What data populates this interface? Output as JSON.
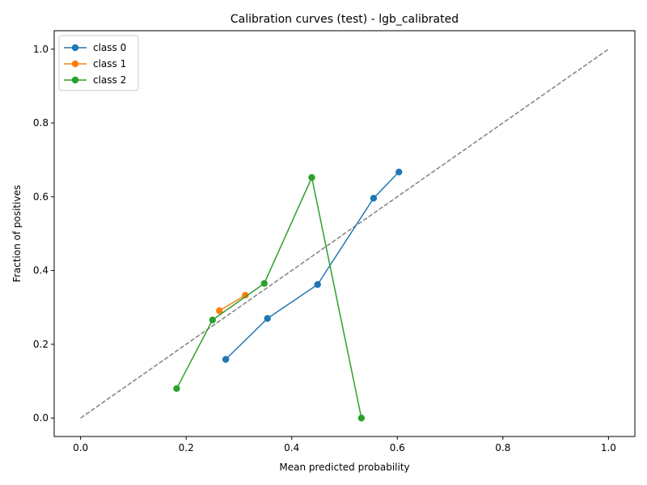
{
  "chart_data": {
    "type": "line",
    "title": "Calibration curves (test) - lgb_calibrated",
    "xlabel": "Mean predicted probability",
    "ylabel": "Fraction of positives",
    "xlim": [
      -0.05,
      1.05
    ],
    "ylim": [
      -0.05,
      1.05
    ],
    "xticks": [
      0.0,
      0.2,
      0.4,
      0.6,
      0.8,
      1.0
    ],
    "yticks": [
      0.0,
      0.2,
      0.4,
      0.6,
      0.8,
      1.0
    ],
    "xtick_labels": [
      "0.0",
      "0.2",
      "0.4",
      "0.6",
      "0.8",
      "1.0"
    ],
    "ytick_labels": [
      "0.0",
      "0.2",
      "0.4",
      "0.6",
      "0.8",
      "1.0"
    ],
    "grid": false,
    "legend_position": "top-left",
    "reference_line": {
      "x": [
        0.0,
        1.0
      ],
      "y": [
        0.0,
        1.0
      ],
      "color": "#808080",
      "style": "dashed"
    },
    "series": [
      {
        "name": "class 0",
        "color": "#1f77b4",
        "x": [
          0.275,
          0.354,
          0.449,
          0.555,
          0.603
        ],
        "y": [
          0.159,
          0.27,
          0.362,
          0.596,
          0.667
        ]
      },
      {
        "name": "class 1",
        "color": "#ff7f0e",
        "x": [
          0.263,
          0.312
        ],
        "y": [
          0.291,
          0.333
        ]
      },
      {
        "name": "class 2",
        "color": "#2ca02c",
        "x": [
          0.182,
          0.25,
          0.348,
          0.438,
          0.532
        ],
        "y": [
          0.08,
          0.266,
          0.365,
          0.652,
          0.0
        ]
      }
    ]
  }
}
